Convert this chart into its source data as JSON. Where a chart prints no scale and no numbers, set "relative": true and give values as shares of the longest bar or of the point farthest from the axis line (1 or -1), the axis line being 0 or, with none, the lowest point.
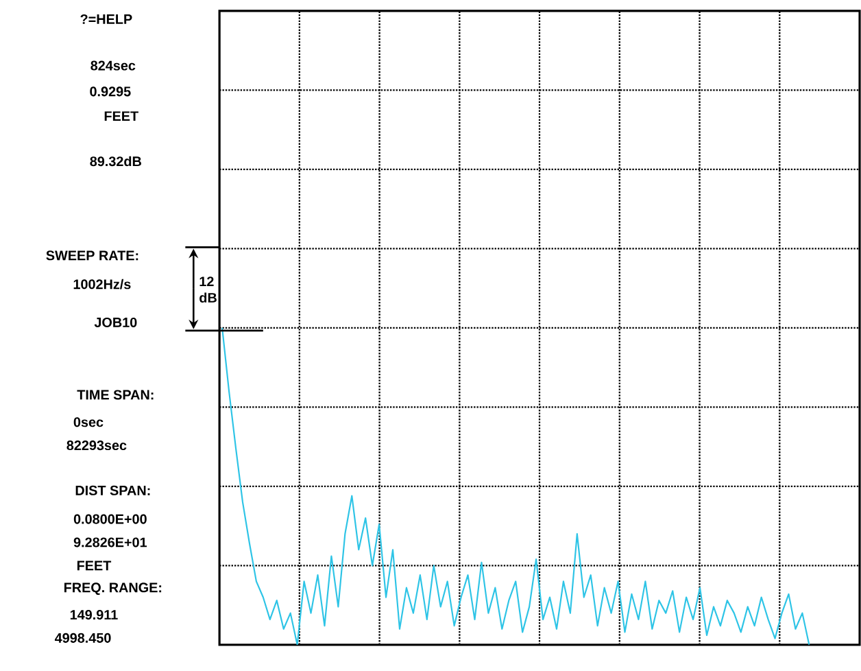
{
  "chart_data": {
    "type": "line",
    "relative": true,
    "grid": true,
    "marker": "none",
    "line_style": "solid",
    "categories": [
      null,
      null,
      null,
      null,
      null,
      null,
      null,
      null,
      null,
      null,
      null,
      null,
      null,
      null,
      null,
      null,
      null,
      null,
      null,
      null,
      null,
      null,
      null,
      null,
      null,
      null,
      null,
      null,
      null,
      null,
      null,
      null,
      null,
      null,
      null,
      null,
      null,
      null,
      null,
      null,
      null,
      null,
      null,
      null,
      null,
      null,
      null,
      null,
      null,
      null,
      null,
      null,
      null,
      null,
      null,
      null,
      null,
      null,
      null,
      null,
      null,
      null,
      null,
      null,
      null,
      null,
      null,
      null,
      null,
      null,
      null,
      null,
      null,
      null,
      null,
      null,
      null,
      null,
      null,
      null,
      null,
      null,
      null,
      null,
      null,
      null,
      null,
      null,
      null,
      null,
      null,
      null,
      null,
      null
    ],
    "series": [
      {
        "color": "#2ec4e6",
        "values": [
          1.0,
          0.8,
          0.62,
          0.45,
          0.32,
          0.2,
          0.15,
          0.08,
          0.14,
          0.05,
          0.1,
          0.0,
          0.2,
          0.1,
          0.22,
          0.06,
          0.28,
          0.12,
          0.35,
          0.47,
          0.3,
          0.4,
          0.25,
          0.38,
          0.15,
          0.3,
          0.05,
          0.18,
          0.1,
          0.22,
          0.08,
          0.25,
          0.12,
          0.2,
          0.06,
          0.15,
          0.22,
          0.08,
          0.26,
          0.1,
          0.18,
          0.05,
          0.14,
          0.2,
          0.04,
          0.12,
          0.27,
          0.08,
          0.15,
          0.05,
          0.2,
          0.1,
          0.35,
          0.15,
          0.22,
          0.06,
          0.18,
          0.1,
          0.2,
          0.04,
          0.16,
          0.08,
          0.2,
          0.05,
          0.14,
          0.1,
          0.17,
          0.04,
          0.15,
          0.08,
          0.18,
          0.03,
          0.12,
          0.06,
          0.14,
          0.1,
          0.04,
          0.12,
          0.06,
          0.15,
          0.08,
          0.02,
          0.1,
          0.16,
          0.05,
          0.1,
          0.0,
          null,
          null,
          null,
          null,
          null,
          null,
          null
        ]
      }
    ],
    "annotations": [
      "?=HELP",
      "824sec",
      "0.9295",
      "FEET",
      "89.32dB",
      "SWEEP RATE:",
      "1002Hz/s",
      "12 dB",
      "JOB10",
      "TIME SPAN:",
      "0sec",
      "82293sec",
      "DIST SPAN:",
      "0.0800E+00",
      "9.2826E+01",
      "FEET",
      "FREQ. RANGE:",
      "149.911",
      "4998.450"
    ]
  }
}
